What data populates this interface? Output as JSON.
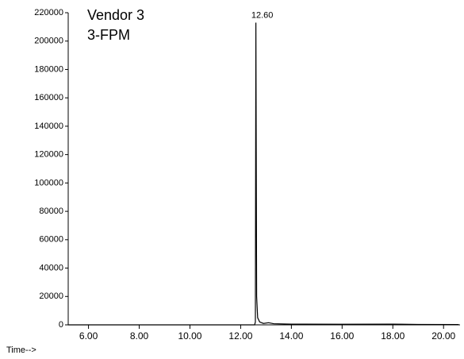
{
  "chart_data": {
    "type": "line",
    "title": "Vendor 3",
    "subtitle": "3-FPM",
    "x_label": "Time-->",
    "x": [
      5.2,
      12.55,
      12.58,
      12.6,
      12.63,
      12.67,
      12.75,
      12.9,
      13.1,
      13.3,
      14,
      16,
      18,
      19,
      20.6
    ],
    "series": [
      {
        "color": "#000000",
        "values": [
          0,
          0,
          2000,
          213000,
          20000,
          5000,
          2000,
          1000,
          1500,
          800,
          500,
          400,
          500,
          300,
          200
        ]
      }
    ],
    "annotations": [
      {
        "text": "12.60",
        "x": 12.6,
        "y": 213000
      }
    ],
    "xlim": [
      5.2,
      20.65
    ],
    "xticks": [
      {
        "value": 6,
        "label": "6.00"
      },
      {
        "value": 8,
        "label": "8.00"
      },
      {
        "value": 10,
        "label": "10.00"
      },
      {
        "value": 12,
        "label": "12.00"
      },
      {
        "value": 14,
        "label": "14.00"
      },
      {
        "value": 16,
        "label": "16.00"
      },
      {
        "value": 18,
        "label": "18.00"
      },
      {
        "value": 20,
        "label": "20.00"
      }
    ],
    "ylim": [
      0,
      220000
    ],
    "yticks": [
      0,
      20000,
      40000,
      60000,
      80000,
      100000,
      120000,
      140000,
      160000,
      180000,
      200000,
      220000
    ],
    "grid": false
  }
}
